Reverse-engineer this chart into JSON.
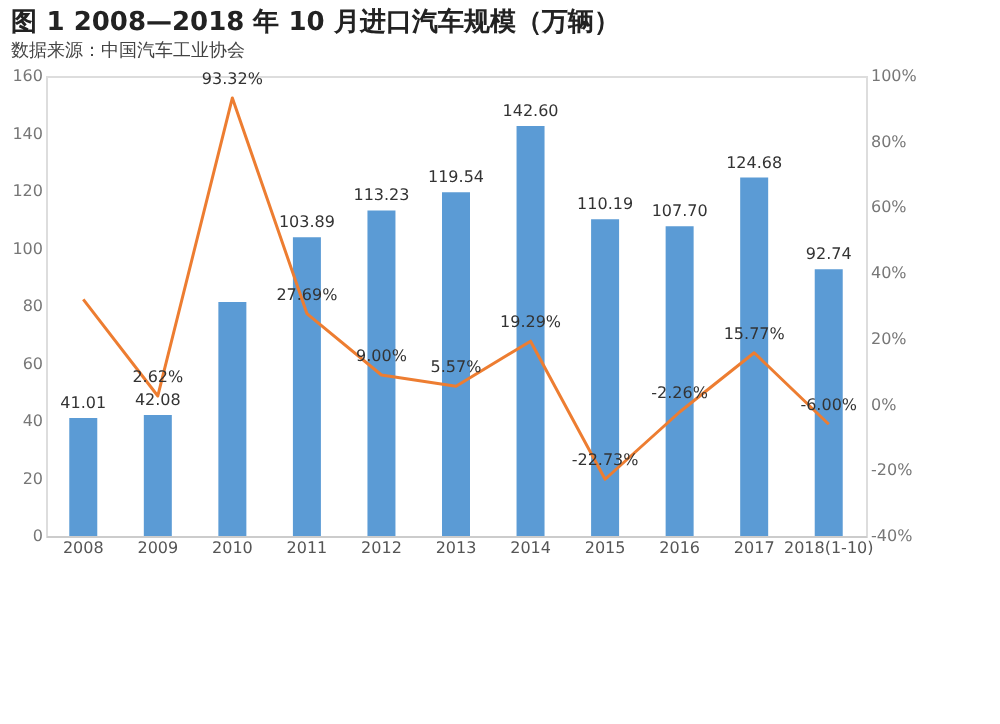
{
  "chart_data": {
    "type": "bar",
    "title": "图 1   2008—2018 年 10 月进口汽车规模（万辆）",
    "subtitle": "数据来源：中国汽车工业协会",
    "categories": [
      "2008",
      "2009",
      "2010",
      "2011",
      "2012",
      "2013",
      "2014",
      "2015",
      "2016",
      "2017",
      "2018(1-10)"
    ],
    "series": [
      {
        "color": "#5b9bd5",
        "values": [
          41.01,
          42.08,
          81.4,
          103.89,
          113.23,
          119.54,
          142.6,
          110.19,
          107.7,
          124.68,
          92.74
        ],
        "value_labels": [
          "41.01",
          "42.08",
          null,
          "103.89",
          "113.23",
          "119.54",
          "142.60",
          "110.19",
          "107.70",
          "124.68",
          "92.74"
        ]
      },
      {
        "type": "line",
        "axis": "y2",
        "color": "#ed7d31",
        "values": [
          32,
          2.62,
          93.32,
          27.69,
          9.0,
          5.57,
          19.29,
          -22.73,
          -2.26,
          15.77,
          -6.0
        ],
        "value_labels": [
          null,
          "2.62%",
          "93.32%",
          "27.69%",
          "9.00%",
          "5.57%",
          "19.29%",
          "-22.73%",
          "-2.26%",
          "15.77%",
          "-6.00%"
        ]
      }
    ],
    "ylim": [
      0,
      160
    ],
    "yticks": [
      0,
      20,
      40,
      60,
      80,
      100,
      120,
      140,
      160
    ],
    "y2lim": [
      -40,
      100
    ],
    "y2ticks": [
      {
        "value": -40,
        "label": "-40%"
      },
      {
        "value": -20,
        "label": "-20%"
      },
      {
        "value": 0,
        "label": "0%"
      },
      {
        "value": 20,
        "label": "20%"
      },
      {
        "value": 40,
        "label": "40%"
      },
      {
        "value": 60,
        "label": "60%"
      },
      {
        "value": 80,
        "label": "80%"
      },
      {
        "value": 100,
        "label": "100%"
      }
    ],
    "grid": false
  }
}
